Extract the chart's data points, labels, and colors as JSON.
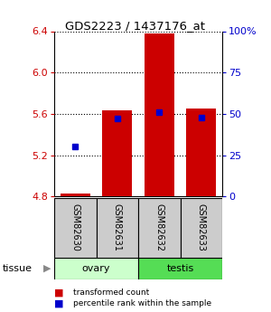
{
  "title": "GDS2223 / 1437176_at",
  "samples": [
    "GSM82630",
    "GSM82631",
    "GSM82632",
    "GSM82633"
  ],
  "bar_values": [
    4.83,
    5.63,
    6.38,
    5.65
  ],
  "percentile_values": [
    5.28,
    5.555,
    5.62,
    5.565
  ],
  "y_min": 4.8,
  "y_max": 6.4,
  "y_ticks": [
    4.8,
    5.2,
    5.6,
    6.0,
    6.4
  ],
  "y_right_ticks": [
    0,
    25,
    50,
    75,
    100
  ],
  "bar_color": "#cc0000",
  "blue_color": "#0000cc",
  "baseline": 4.8,
  "ovary_color": "#ccffcc",
  "testis_color": "#55dd55",
  "sample_box_color": "#cccccc",
  "legend_red": "transformed count",
  "legend_blue": "percentile rank within the sample"
}
